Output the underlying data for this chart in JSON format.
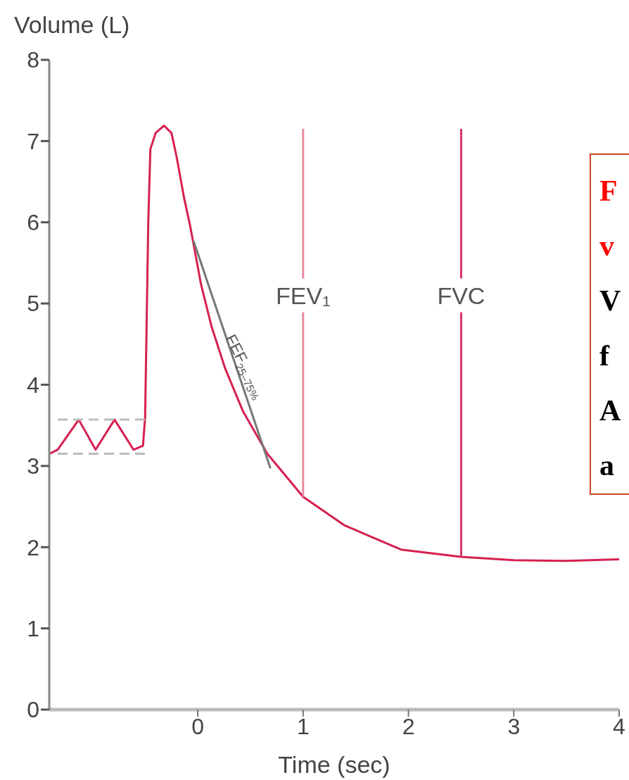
{
  "chart_data": {
    "type": "line",
    "xlabel": "Time (sec)",
    "ylabel": "Volume (L)",
    "xlim": [
      -1.41,
      4
    ],
    "xticks": [
      0,
      1,
      2,
      3,
      4
    ],
    "ylim": [
      0,
      8
    ],
    "yticks": [
      0,
      1,
      2,
      3,
      4,
      5,
      6,
      7,
      8
    ],
    "marker": "none",
    "series": [
      {
        "color": "#d6204f",
        "x": [
          -1.41,
          -1.33,
          -1.13,
          -0.97,
          -0.79,
          -0.61,
          -0.52,
          -0.5,
          -0.47,
          -0.45,
          -0.4,
          -0.32,
          -0.25,
          -0.2,
          -0.13,
          -0.07,
          0.03,
          0.13,
          0.26,
          0.43,
          0.66,
          1.0,
          1.39,
          1.93,
          2.5,
          3.0,
          3.5,
          4.0
        ],
        "values": [
          3.15,
          3.2,
          3.57,
          3.2,
          3.57,
          3.2,
          3.25,
          3.6,
          6.0,
          6.9,
          7.1,
          7.19,
          7.1,
          6.8,
          6.3,
          5.94,
          5.24,
          4.72,
          4.2,
          3.67,
          3.15,
          2.62,
          2.27,
          1.97,
          1.88,
          1.84,
          1.83,
          1.85
        ]
      },
      {
        "color": "#bbbbbb",
        "line_style": "dashed",
        "x": [
          -1.33,
          -0.5
        ],
        "values": [
          3.57,
          3.57
        ]
      },
      {
        "color": "#bbbbbb",
        "line_style": "dashed",
        "x": [
          -1.33,
          -0.5
        ],
        "values": [
          3.15,
          3.15
        ]
      },
      {
        "color": "#777777",
        "x": [
          -0.04,
          0.69
        ],
        "values": [
          5.77,
          2.97
        ]
      },
      {
        "color": "#e88aa0",
        "x": [
          1,
          1
        ],
        "values": [
          7.15,
          2.62
        ]
      },
      {
        "color": "#d6336b",
        "x": [
          2.5,
          2.5
        ],
        "values": [
          7.15,
          1.88
        ]
      }
    ],
    "annotations": [
      {
        "text": "FEF$_{25–75%}$",
        "x": 0.33,
        "y": 4.36
      },
      {
        "text": "FEV₁",
        "x": 1,
        "y": 5.1
      },
      {
        "text": "FVC",
        "x": 2.5,
        "y": 5.1
      },
      "F",
      "v",
      "V",
      "f",
      "A",
      "a"
    ]
  }
}
